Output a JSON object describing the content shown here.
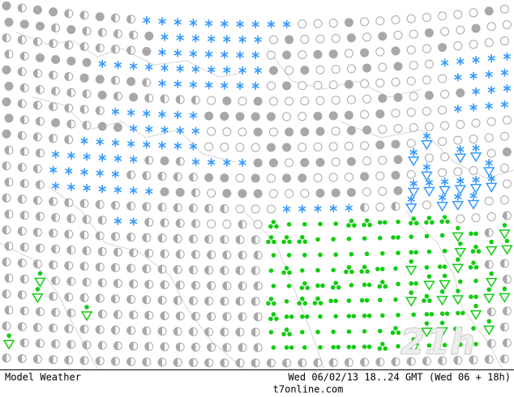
{
  "footer": {
    "product": "Model Weather",
    "timestamp": "Wed 06/02/13 18..24 GMT (Wed 06 + 18h)",
    "site": "t7online.com"
  },
  "watermark": "21h"
}
